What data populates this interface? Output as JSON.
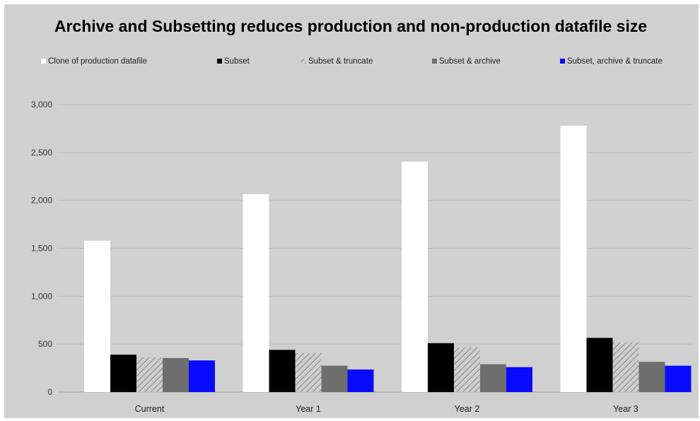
{
  "chart_data": {
    "type": "bar",
    "title": "Archive and Subsetting reduces production and non-production datafile size",
    "categories": [
      "Current",
      "Year 1",
      "Year 2",
      "Year 3"
    ],
    "series": [
      {
        "name": "Clone of production  datafile",
        "color": "#ffffff",
        "pattern": "solid",
        "values": [
          1580,
          2065,
          2405,
          2780
        ]
      },
      {
        "name": "Subset",
        "color": "#000000",
        "pattern": "solid",
        "values": [
          390,
          440,
          510,
          565
        ]
      },
      {
        "name": "Subset & truncate",
        "color": "#b0b0b0",
        "pattern": "hatch",
        "values": [
          360,
          405,
          465,
          520
        ]
      },
      {
        "name": "Subset & archive",
        "color": "#6e6e6e",
        "pattern": "solid",
        "values": [
          355,
          275,
          290,
          315
        ]
      },
      {
        "name": "Subset, archive & truncate",
        "color": "#0a0aff",
        "pattern": "solid",
        "values": [
          330,
          235,
          260,
          275
        ]
      }
    ],
    "yticks": [
      "0",
      "500",
      "1,000",
      "1,500",
      "2,000",
      "2,500",
      "3,000"
    ],
    "ylim": [
      0,
      3000
    ],
    "xlabel": "",
    "ylabel": "",
    "grid": true,
    "legend_position": "top"
  }
}
